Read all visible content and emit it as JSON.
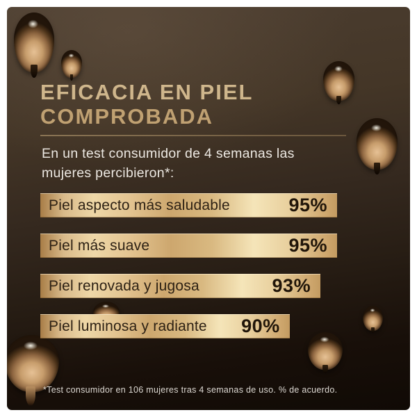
{
  "header": {
    "title_line1": "EFICACIA EN PIEL",
    "title_line2": "COMPROBADA",
    "subtitle": "En un test consumidor de 4 semanas las mujeres percibieron*:"
  },
  "chart_data": {
    "type": "bar",
    "orientation": "horizontal",
    "title": "EFICACIA EN PIEL COMPROBADA",
    "subtitle": "En un test consumidor de 4 semanas las mujeres percibieron*:",
    "categories": [
      "Piel aspecto más saludable",
      "Piel más suave",
      "Piel renovada y jugosa",
      "Piel luminosa y radiante"
    ],
    "values": [
      95,
      95,
      93,
      90
    ],
    "value_labels": [
      "95%",
      "95%",
      "93%",
      "90%"
    ],
    "unit": "%",
    "xlim": [
      0,
      100
    ],
    "bar_width_pct": [
      100,
      100,
      94.4,
      84
    ],
    "footnote": "*Test consumidor en 106 mujeres tras 4 semanas de uso. % de acuerdo."
  },
  "colors": {
    "frame_white": "#ffffff",
    "background_top": "#4c3e31",
    "background_bottom": "#100a05",
    "title_gold": "#cfb68c",
    "divider_gold": "#8a7454",
    "bar_gold_light": "#f5e5b9",
    "bar_gold_dark": "#a87d47",
    "bar_text": "#2d2114",
    "body_text": "#ece8e2"
  },
  "decorations": {
    "droplet_count": 8,
    "droplet_description": "golden water droplets on dark brown background"
  }
}
